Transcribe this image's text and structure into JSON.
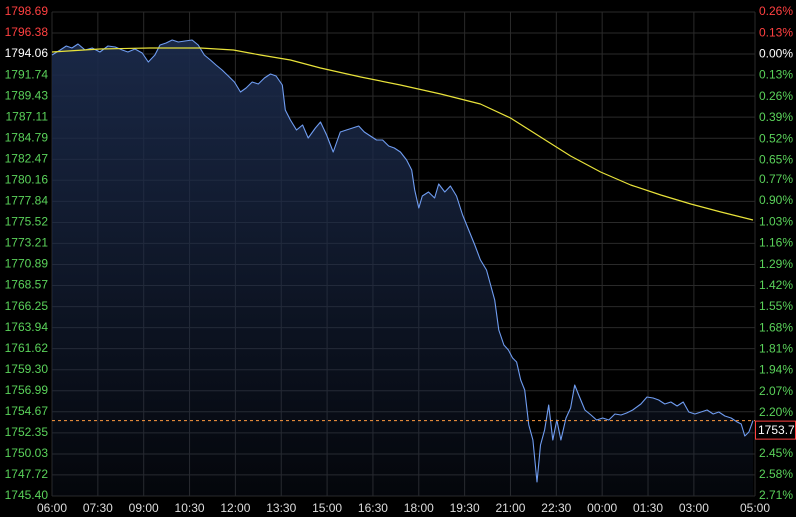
{
  "chart_data": {
    "type": "line",
    "background": "#000000",
    "grid": true,
    "grid_color": "#2a2a2a",
    "up_color": "#ff4040",
    "down_color": "#5ad25a",
    "flat_color": "#ffffff",
    "area_color": "#1b2a4a",
    "xlim": [
      0,
      1380
    ],
    "xticks": [
      {
        "value": 0,
        "label": "06:00"
      },
      {
        "value": 90,
        "label": "07:30"
      },
      {
        "value": 180,
        "label": "09:00"
      },
      {
        "value": 270,
        "label": "10:30"
      },
      {
        "value": 360,
        "label": "12:00"
      },
      {
        "value": 450,
        "label": "13:30"
      },
      {
        "value": 540,
        "label": "15:00"
      },
      {
        "value": 630,
        "label": "16:30"
      },
      {
        "value": 720,
        "label": "18:00"
      },
      {
        "value": 810,
        "label": "19:30"
      },
      {
        "value": 900,
        "label": "21:00"
      },
      {
        "value": 990,
        "label": "22:30"
      },
      {
        "value": 1080,
        "label": "00:00"
      },
      {
        "value": 1170,
        "label": "01:30"
      },
      {
        "value": 1260,
        "label": "03:00"
      },
      {
        "value": 1380,
        "label": "05:00"
      }
    ],
    "ylim": [
      1745.4,
      1798.69
    ],
    "yticks": [
      1798.69,
      1796.38,
      1794.06,
      1791.74,
      1789.43,
      1787.11,
      1784.79,
      1782.47,
      1780.16,
      1777.84,
      1775.52,
      1773.21,
      1770.89,
      1768.57,
      1766.25,
      1763.94,
      1761.62,
      {
        "value": 1759.3,
        "label": "1759.30"
      },
      1756.99,
      1754.67,
      1752.35,
      1750.03,
      1747.72,
      {
        "value": 1745.4,
        "label": "1745.40"
      }
    ],
    "y2lim": [
      -2.71,
      0.26
    ],
    "y2ticks": [
      {
        "value": 0.26,
        "label": "0.26%"
      },
      {
        "value": 0.13,
        "label": "0.13%"
      },
      {
        "value": 0,
        "label": "0.00%"
      },
      {
        "value": -0.13,
        "label": "0.13%"
      },
      {
        "value": -0.26,
        "label": "0.26%"
      },
      {
        "value": -0.39,
        "label": "0.39%"
      },
      {
        "value": -0.52,
        "label": "0.52%"
      },
      {
        "value": -0.65,
        "label": "0.65%"
      },
      {
        "value": -0.77,
        "label": "0.77%"
      },
      {
        "value": -0.9,
        "label": "0.90%"
      },
      {
        "value": -1.03,
        "label": "1.03%"
      },
      {
        "value": -1.16,
        "label": "1.16%"
      },
      {
        "value": -1.29,
        "label": "1.29%"
      },
      {
        "value": -1.42,
        "label": "1.42%"
      },
      {
        "value": -1.55,
        "label": "1.55%"
      },
      {
        "value": -1.68,
        "label": "1.68%"
      },
      {
        "value": -1.81,
        "label": "1.81%"
      },
      {
        "value": -1.94,
        "label": "1.94%"
      },
      {
        "value": -2.07,
        "label": "2.07%"
      },
      {
        "value": -2.2,
        "label": "2.20%"
      },
      {
        "value": -2.45,
        "label": "2.45%"
      },
      {
        "value": -2.58,
        "label": "2.58%"
      },
      {
        "value": -2.71,
        "label": "2.71%"
      }
    ],
    "last_value": 1753.7,
    "last_value_color": "#ff9a40",
    "series": [
      {
        "color": "#6f9cf0",
        "area": true,
        "x": [
          0,
          16,
          28,
          39,
          51,
          65,
          79,
          94,
          110,
          124,
          138,
          149,
          163,
          177,
          189,
          202,
          212,
          224,
          236,
          248,
          261,
          275,
          287,
          299,
          311,
          322,
          334,
          346,
          358,
          370,
          381,
          393,
          405,
          417,
          429,
          440,
          452,
          458,
          468,
          480,
          492,
          503,
          517,
          527,
          539,
          552,
          566,
          578,
          590,
          602,
          613,
          625,
          637,
          649,
          661,
          672,
          684,
          696,
          706,
          712,
          720,
          727,
          739,
          751,
          759,
          771,
          782,
          794,
          806,
          818,
          830,
          841,
          853,
          861,
          869,
          877,
          887,
          896,
          904,
          912,
          920,
          928,
          936,
          944,
          952,
          959,
          967,
          975,
          983,
          991,
          999,
          1009,
          1018,
          1026,
          1034,
          1046,
          1058,
          1069,
          1081,
          1093,
          1105,
          1117,
          1128,
          1140,
          1156,
          1168,
          1180,
          1191,
          1203,
          1215,
          1227,
          1239,
          1250,
          1262,
          1274,
          1286,
          1298,
          1309,
          1321,
          1333,
          1345,
          1353,
          1360,
          1368,
          1376
        ],
        "values": [
          1793.96,
          1794.51,
          1794.95,
          1794.73,
          1795.17,
          1794.51,
          1794.73,
          1794.29,
          1794.95,
          1794.84,
          1794.51,
          1794.29,
          1794.62,
          1794.18,
          1793.18,
          1793.96,
          1795.06,
          1795.28,
          1795.61,
          1795.39,
          1795.5,
          1795.61,
          1795.06,
          1793.96,
          1793.41,
          1792.85,
          1792.3,
          1791.64,
          1790.98,
          1789.88,
          1790.32,
          1790.98,
          1790.76,
          1791.42,
          1791.86,
          1791.64,
          1790.65,
          1787.9,
          1786.8,
          1785.7,
          1786.25,
          1784.82,
          1785.92,
          1786.58,
          1785.15,
          1783.28,
          1785.48,
          1785.7,
          1785.92,
          1786.14,
          1785.48,
          1785.04,
          1784.6,
          1784.6,
          1783.94,
          1783.72,
          1783.28,
          1782.4,
          1781.29,
          1779.09,
          1777.11,
          1778.43,
          1778.87,
          1778.21,
          1779.75,
          1778.87,
          1779.53,
          1778.43,
          1776.34,
          1774.69,
          1773.04,
          1771.39,
          1770.28,
          1768.63,
          1766.98,
          1763.68,
          1762.03,
          1761.48,
          1760.6,
          1760.15,
          1758.17,
          1757.07,
          1753.22,
          1751.57,
          1746.94,
          1751.02,
          1752.67,
          1755.42,
          1751.57,
          1753.77,
          1751.57,
          1753.99,
          1755.09,
          1757.62,
          1756.52,
          1754.87,
          1754.32,
          1753.77,
          1753.99,
          1753.77,
          1754.43,
          1754.32,
          1754.54,
          1754.87,
          1755.53,
          1756.3,
          1756.19,
          1755.97,
          1755.53,
          1755.75,
          1755.31,
          1755.75,
          1754.65,
          1754.43,
          1754.65,
          1754.87,
          1754.43,
          1754.65,
          1754.21,
          1753.99,
          1753.55,
          1753.33,
          1752.01,
          1752.45,
          1753.7
        ]
      },
      {
        "color": "#e8e23a",
        "area": false,
        "x": [
          0,
          94,
          193,
          291,
          356,
          409,
          468,
          527,
          606,
          684,
          763,
          841,
          900,
          959,
          1018,
          1077,
          1136,
          1195,
          1254,
          1313,
          1376
        ],
        "values": [
          1794.29,
          1794.62,
          1794.73,
          1794.73,
          1794.51,
          1793.96,
          1793.41,
          1792.52,
          1791.53,
          1790.65,
          1789.66,
          1788.56,
          1787.02,
          1784.93,
          1782.84,
          1781.07,
          1779.64,
          1778.54,
          1777.55,
          1776.67,
          1775.79
        ]
      }
    ]
  }
}
